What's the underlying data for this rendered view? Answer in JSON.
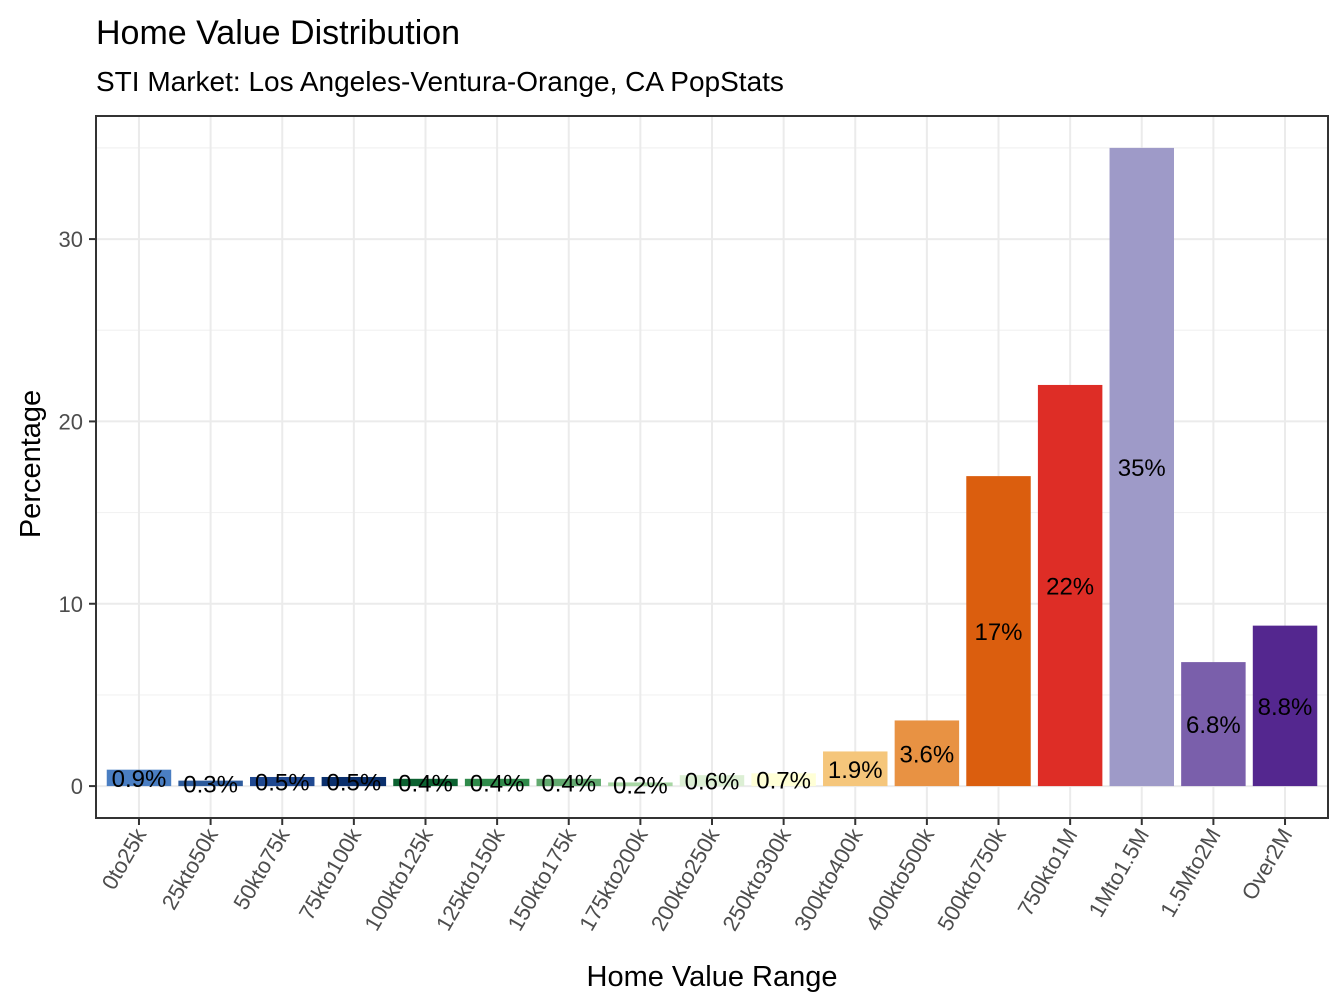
{
  "chart_data": {
    "type": "bar",
    "title": "Home Value Distribution",
    "subtitle": "STI Market: Los Angeles-Ventura-Orange, CA PopStats",
    "xlabel": "Home Value Range",
    "ylabel": "Percentage",
    "ylim": [
      -1.75,
      36.75
    ],
    "yticks": [
      0,
      10,
      20,
      30
    ],
    "grid": true,
    "legend": "none",
    "categories": [
      "0to25k",
      "25kto50k",
      "50kto75k",
      "75kto100k",
      "100kto125k",
      "125kto150k",
      "150kto175k",
      "175kto200k",
      "200kto250k",
      "250kto300k",
      "300kto400k",
      "400kto500k",
      "500kto750k",
      "750kto1M",
      "1Mto1.5M",
      "1.5Mto2M",
      "Over2M"
    ],
    "values": [
      0.9,
      0.3,
      0.5,
      0.5,
      0.4,
      0.4,
      0.4,
      0.2,
      0.6,
      0.7,
      1.9,
      3.6,
      17,
      22,
      35,
      6.8,
      8.8
    ],
    "labels": [
      "0.9%",
      "0.3%",
      "0.5%",
      "0.5%",
      "0.4%",
      "0.4%",
      "0.4%",
      "0.2%",
      "0.6%",
      "0.7%",
      "1.9%",
      "3.6%",
      "17%",
      "22%",
      "35%",
      "6.8%",
      "8.8%"
    ],
    "colors": [
      "#4a7ec2",
      "#2d5b9c",
      "#1f4890",
      "#0a2f6c",
      "#0b6130",
      "#2f8a4a",
      "#63aa70",
      "#a8d6a4",
      "#dcefd4",
      "#ffffd6",
      "#f5c67b",
      "#e89243",
      "#db5e0e",
      "#de2d26",
      "#9e9ac8",
      "#7a5fab",
      "#54278f"
    ]
  }
}
